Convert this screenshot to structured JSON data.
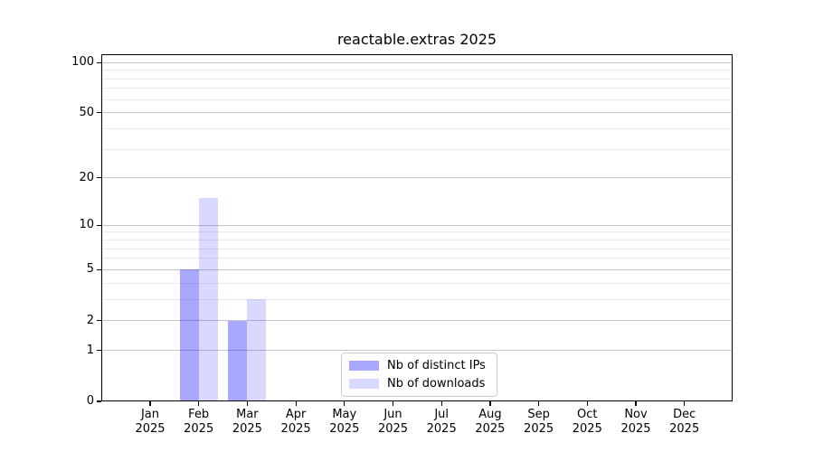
{
  "chart_data": {
    "type": "bar",
    "title": "reactable.extras 2025",
    "x_year": "2025",
    "categories": [
      "Jan",
      "Feb",
      "Mar",
      "Apr",
      "May",
      "Jun",
      "Jul",
      "Aug",
      "Sep",
      "Oct",
      "Nov",
      "Dec"
    ],
    "series": [
      {
        "name": "Nb of distinct IPs",
        "color": "rgba(0,0,255,0.34)",
        "values": [
          0,
          5,
          2,
          0,
          0,
          0,
          0,
          0,
          0,
          0,
          0,
          0
        ]
      },
      {
        "name": "Nb of downloads",
        "color": "rgba(0,0,255,0.15)",
        "values": [
          0,
          15,
          3,
          0,
          0,
          0,
          0,
          0,
          0,
          0,
          0,
          0
        ]
      }
    ],
    "y_scale": "log1p",
    "y_axis_ticks": [
      0,
      1,
      2,
      5,
      10,
      20,
      50,
      100
    ],
    "y_minor_gridlines": [
      3,
      4,
      6,
      7,
      8,
      9,
      30,
      40,
      60,
      70,
      80,
      90
    ],
    "ylim": [
      0,
      112
    ],
    "xlabel": "",
    "ylabel": "",
    "grid": "on",
    "legend": {
      "position": "inside-bottom-center"
    },
    "colors": {
      "major_grid": "#c6c6c6",
      "minor_grid": "#eaeaea",
      "spine": "#000000",
      "background": "#ffffff"
    }
  }
}
